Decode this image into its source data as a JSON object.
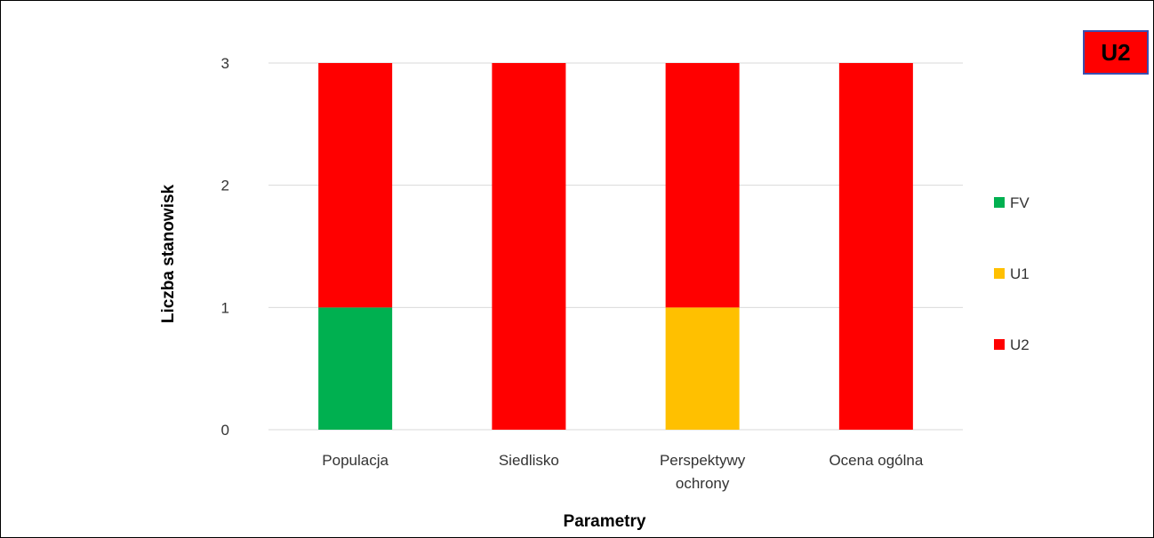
{
  "badge": {
    "label": "U2",
    "color": "#ff0000"
  },
  "chart_data": {
    "type": "bar",
    "stacked": true,
    "title": "",
    "xlabel": "Parametry",
    "ylabel": "Liczba stanowisk",
    "ylim": [
      0,
      3
    ],
    "yticks": [
      0,
      1,
      2,
      3
    ],
    "grid": true,
    "legend_position": "right",
    "categories": [
      [
        "Populacja"
      ],
      [
        "Siedlisko"
      ],
      [
        "Perspektywy",
        "ochrony"
      ],
      [
        "Ocena ogólna"
      ]
    ],
    "series": [
      {
        "name": "FV",
        "color": "#00b050",
        "values": [
          1,
          0,
          0,
          0
        ]
      },
      {
        "name": "U1",
        "color": "#ffc000",
        "values": [
          0,
          0,
          1,
          0
        ]
      },
      {
        "name": "U2",
        "color": "#ff0000",
        "values": [
          2,
          3,
          2,
          3
        ]
      }
    ]
  }
}
